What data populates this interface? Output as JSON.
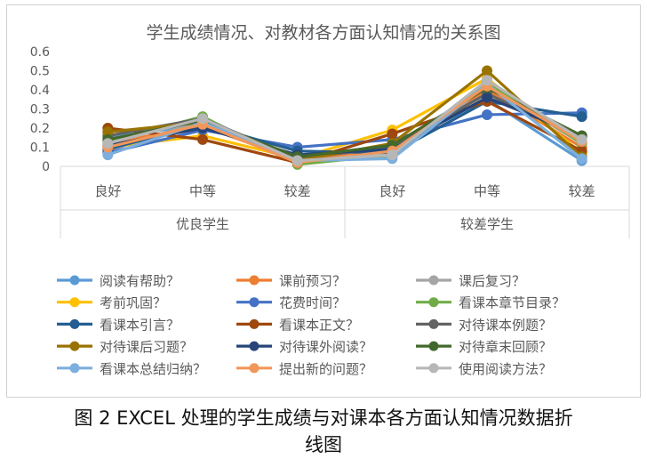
{
  "chart_data": {
    "type": "line",
    "title": "学生成绩情况、对教材各方面认知情况的关系图",
    "ylim": [
      0,
      0.6
    ],
    "yticks": [
      "0",
      "0.1",
      "0.2",
      "0.3",
      "0.4",
      "0.5",
      "0.6"
    ],
    "categories": [
      "良好",
      "中等",
      "较差",
      "良好",
      "中等",
      "较差"
    ],
    "groups": [
      {
        "label": "优良学生",
        "span": [
          0,
          2
        ]
      },
      {
        "label": "较差学生",
        "span": [
          3,
          5
        ]
      }
    ],
    "grid": false,
    "legend_position": "bottom",
    "series": [
      {
        "name": "阅读有帮助？",
        "color": "#5B9BD5",
        "values": [
          0.15,
          0.22,
          0.05,
          0.1,
          0.35,
          0.03
        ]
      },
      {
        "name": "课前预习？",
        "color": "#ED7D31",
        "values": [
          0.12,
          0.21,
          0.03,
          0.08,
          0.4,
          0.1
        ]
      },
      {
        "name": "课后复习？",
        "color": "#A5A5A5",
        "values": [
          0.08,
          0.24,
          0.02,
          0.05,
          0.42,
          0.12
        ]
      },
      {
        "name": "考前巩固？",
        "color": "#FFC000",
        "values": [
          0.1,
          0.16,
          0.04,
          0.19,
          0.46,
          0.07
        ]
      },
      {
        "name": "花费时间？",
        "color": "#4472C4",
        "values": [
          0.07,
          0.19,
          0.1,
          0.14,
          0.27,
          0.28
        ]
      },
      {
        "name": "看课本章节目录？",
        "color": "#70AD47",
        "values": [
          0.13,
          0.26,
          0.01,
          0.06,
          0.44,
          0.12
        ]
      },
      {
        "name": "看课本引言？",
        "color": "#255E91",
        "values": [
          0.09,
          0.22,
          0.08,
          0.07,
          0.34,
          0.26
        ]
      },
      {
        "name": "看课本正文？",
        "color": "#9E480E",
        "values": [
          0.2,
          0.14,
          0.02,
          0.17,
          0.34,
          0.08
        ]
      },
      {
        "name": "对待课本例题？",
        "color": "#636363",
        "values": [
          0.16,
          0.25,
          0.04,
          0.1,
          0.38,
          0.15
        ]
      },
      {
        "name": "对待课后习题？",
        "color": "#997300",
        "values": [
          0.18,
          0.23,
          0.03,
          0.12,
          0.5,
          0.05
        ]
      },
      {
        "name": "对待课外阅读？",
        "color": "#264478",
        "values": [
          0.11,
          0.2,
          0.06,
          0.09,
          0.36,
          0.16
        ]
      },
      {
        "name": "对待章末回顾？",
        "color": "#43682B",
        "values": [
          0.14,
          0.24,
          0.05,
          0.11,
          0.41,
          0.16
        ]
      },
      {
        "name": "看课本总结归纳？",
        "color": "#7CAFDD",
        "values": [
          0.06,
          0.23,
          0.03,
          0.04,
          0.43,
          0.04
        ]
      },
      {
        "name": "提出新的问题？",
        "color": "#F1975A",
        "values": [
          0.1,
          0.22,
          0.02,
          0.08,
          0.42,
          0.13
        ]
      },
      {
        "name": "使用阅读方法？",
        "color": "#B7B7B7",
        "values": [
          0.12,
          0.25,
          0.03,
          0.06,
          0.45,
          0.14
        ]
      }
    ]
  },
  "caption": {
    "line1": "图 2  EXCEL 处理的学生成绩与对课本各方面认知情况数据折",
    "line2": "线图"
  }
}
